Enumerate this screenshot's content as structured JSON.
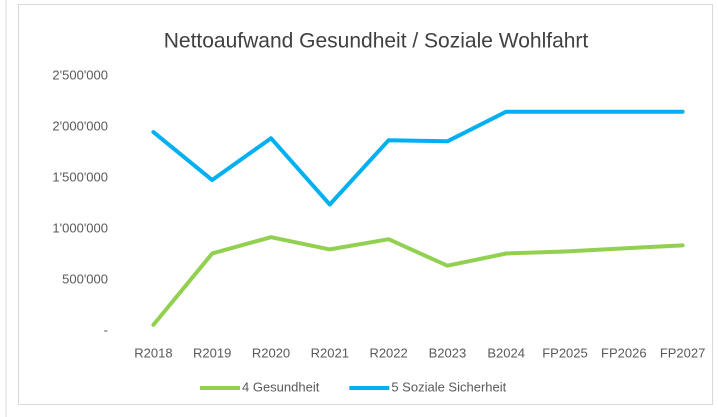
{
  "chart_data": {
    "type": "line",
    "title": "Nettoaufwand Gesundheit  / Soziale Wohlfahrt",
    "categories": [
      "R2018",
      "R2019",
      "R2020",
      "R2021",
      "R2022",
      "B2023",
      "B2024",
      "FP2025",
      "FP2026",
      "FP2027"
    ],
    "series": [
      {
        "name": "4 Gesundheit",
        "color": "#92d050",
        "values": [
          60000,
          760000,
          920000,
          800000,
          900000,
          640000,
          760000,
          780000,
          810000,
          840000
        ]
      },
      {
        "name": "5 Soziale Sicherheit",
        "color": "#00b0f0",
        "values": [
          1950000,
          1480000,
          1890000,
          1240000,
          1870000,
          1860000,
          2150000,
          2150000,
          2150000,
          2150000
        ]
      }
    ],
    "ylim": [
      0,
      2500000
    ],
    "yticks": [
      {
        "value": 0,
        "label": "-"
      },
      {
        "value": 500000,
        "label": "500'000"
      },
      {
        "value": 1000000,
        "label": "1'000'000"
      },
      {
        "value": 1500000,
        "label": "1'500'000"
      },
      {
        "value": 2000000,
        "label": "2'000'000"
      },
      {
        "value": 2500000,
        "label": "2'500'000"
      }
    ],
    "grid": false,
    "legend": "bottom"
  }
}
